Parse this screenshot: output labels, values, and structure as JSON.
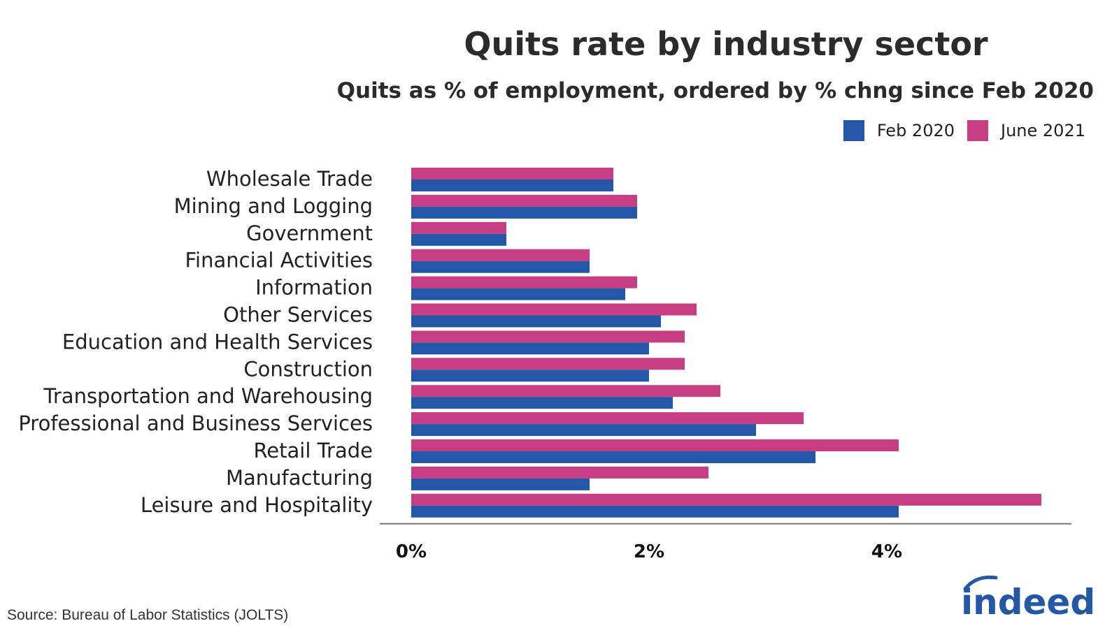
{
  "chart_data": {
    "type": "bar",
    "orientation": "horizontal",
    "title": "Quits rate by industry sector",
    "subtitle": "Quits as % of employment, ordered by % chng since Feb 2020",
    "categories": [
      "Wholesale Trade",
      "Mining and Logging",
      "Government",
      "Financial Activities",
      "Information",
      "Other Services",
      "Education and Health Services",
      "Construction",
      "Transportation and Warehousing",
      "Professional and Business Services",
      "Retail Trade",
      "Manufacturing",
      "Leisure and Hospitality"
    ],
    "series": [
      {
        "name": "June 2021",
        "color": "#C73E85",
        "values": [
          1.7,
          1.9,
          0.8,
          1.5,
          1.9,
          2.4,
          2.3,
          2.3,
          2.6,
          3.3,
          4.1,
          2.5,
          5.3
        ]
      },
      {
        "name": "Feb 2020",
        "color": "#2457A7",
        "values": [
          1.7,
          1.9,
          0.8,
          1.5,
          1.8,
          2.1,
          2.0,
          2.0,
          2.2,
          2.9,
          3.4,
          1.5,
          4.1
        ]
      }
    ],
    "xlim": [
      0,
      5.6
    ],
    "xticks": [
      0,
      2,
      4
    ],
    "xtick_labels": [
      "0%",
      "2%",
      "4%"
    ],
    "legend": "top-right",
    "grid": false
  },
  "legend_items": [
    {
      "label": "Feb 2020",
      "color": "#2457A7"
    },
    {
      "label": "June 2021",
      "color": "#C73E85"
    }
  ],
  "source": "Source: Bureau of Labor Statistics (JOLTS)",
  "logo_text": "indeed",
  "logo_color": "#2557A7"
}
